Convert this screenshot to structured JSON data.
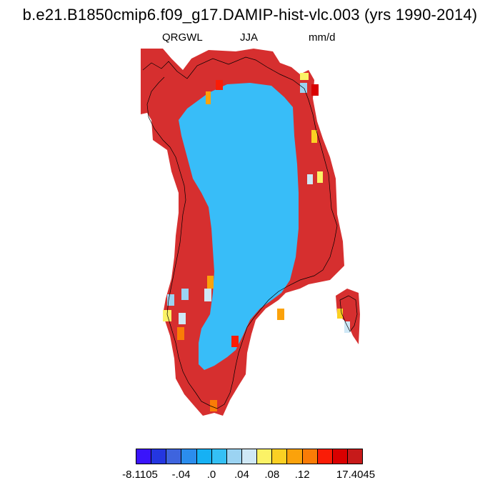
{
  "title": "b.e21.B1850cmip6.f09_g17.DAMIP-hist-vlc.003 (yrs 1990-2014)",
  "subtitles": {
    "variable": "QRGWL",
    "season": "JJA",
    "units": "mm/d"
  },
  "colorbar": {
    "colors": [
      "#3a14fb",
      "#2436e0",
      "#3e64de",
      "#2b8ded",
      "#16b1f4",
      "#34c0f5",
      "#9bd3f2",
      "#cfe8f6",
      "#fbf266",
      "#fbd023",
      "#fba20b",
      "#fa7c06",
      "#fa1c06",
      "#d90000",
      "#c71a1a"
    ],
    "labels": [
      "-8.1105",
      "-.04",
      ".0",
      ".04",
      ".08",
      ".12",
      "17.4045"
    ]
  },
  "map": {
    "region": "greenland",
    "field_colors": {
      "high": "#d62f2f",
      "low": "#38bdf8"
    }
  }
}
